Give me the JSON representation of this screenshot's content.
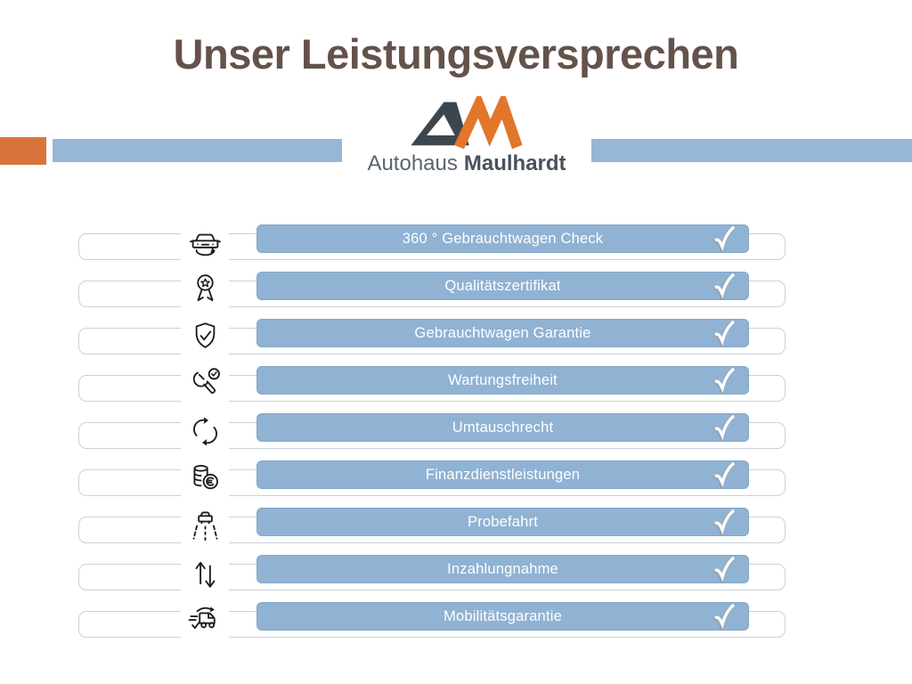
{
  "title": {
    "text": "Unser Leistungsversprechen"
  },
  "colors": {
    "title_brown": "#64524B",
    "band_orange": "#D9753C",
    "band_blue": "#97B7D6",
    "bar_blue": "#90B2D3",
    "logo_dark": "#3C464E",
    "logo_orange": "#E2762B",
    "logo_text_gray": "#5A6570",
    "logo_text_dark": "#49525B",
    "icon_ink": "#1e1e1e",
    "check_white": "#ffffff",
    "check_shadow": "#97a2ac"
  },
  "logo": {
    "monogram": "AM",
    "name_regular": "Autohaus",
    "name_bold": "Maulhardt"
  },
  "list": {
    "items": [
      {
        "label": "360 ° Gebrauchtwagen Check",
        "icon": "car-360-icon",
        "checked": true
      },
      {
        "label": "Qualitätszertifikat",
        "icon": "medal-icon",
        "checked": true
      },
      {
        "label": "Gebrauchtwagen Garantie",
        "icon": "shield-check-icon",
        "checked": true
      },
      {
        "label": "Wartungsfreiheit",
        "icon": "wrench-check-icon",
        "checked": true
      },
      {
        "label": "Umtauschrecht",
        "icon": "exchange-arrows-icon",
        "checked": true
      },
      {
        "label": "Finanzdienstleistungen",
        "icon": "coins-euro-icon",
        "checked": true
      },
      {
        "label": "Probefahrt",
        "icon": "highway-car-icon",
        "checked": true
      },
      {
        "label": "Inzahlungnahme",
        "icon": "arrows-up-down-icon",
        "checked": true
      },
      {
        "label": "Mobilitätsgarantie",
        "icon": "fast-van-icon",
        "checked": true
      }
    ]
  }
}
